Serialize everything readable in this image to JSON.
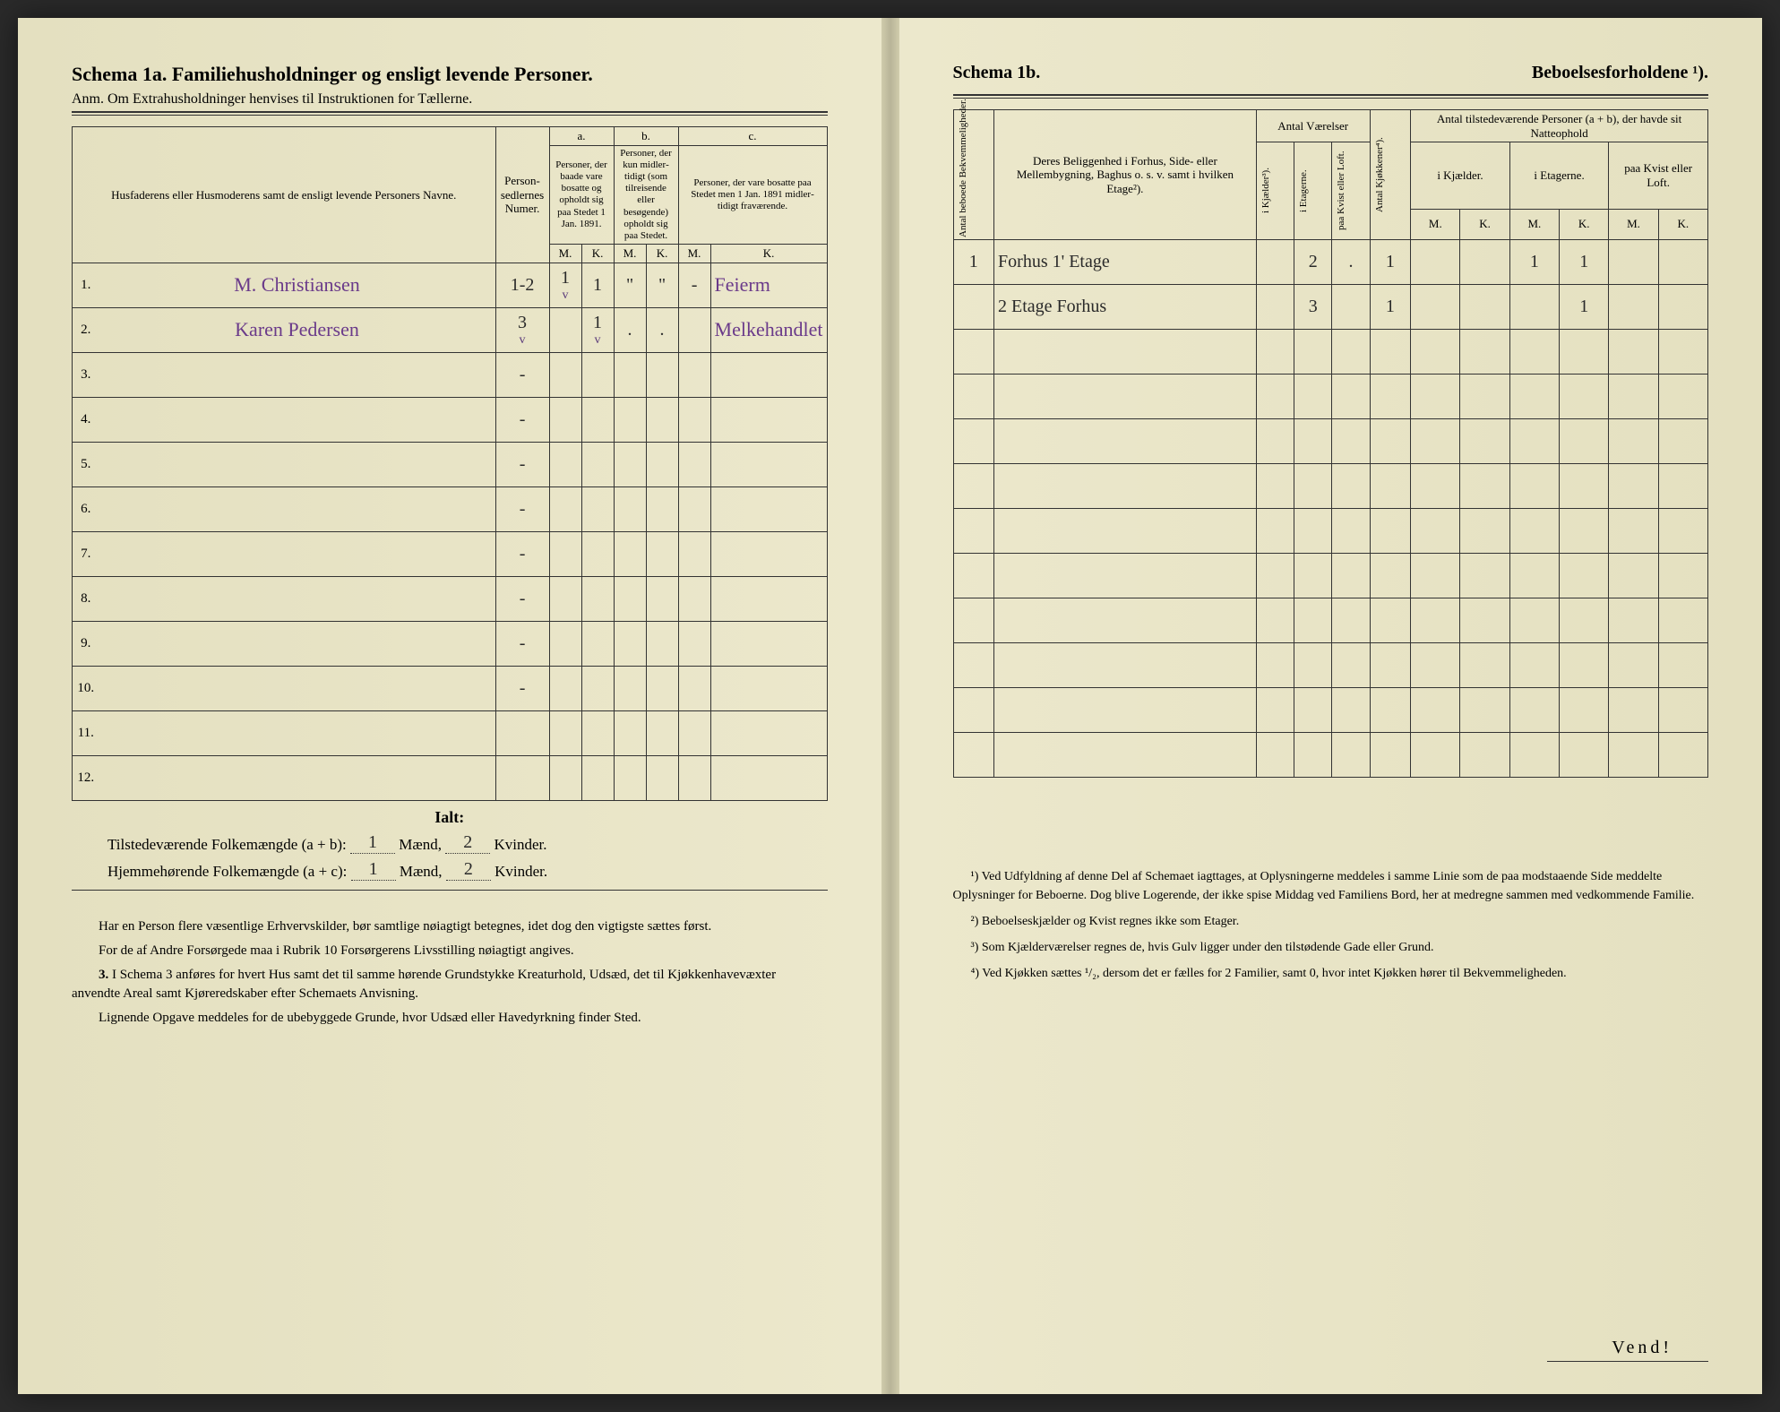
{
  "left": {
    "title": "Schema 1a.  Familiehusholdninger og ensligt levende Personer.",
    "subtitle": "Anm. Om Extrahusholdninger henvises til Instruktionen for Tællerne.",
    "head_name": "Husfaderens eller Husmode­rens samt de ensligt levende Personers Navne.",
    "head_person_nummer": "Person­sedler­nes Numer.",
    "col_a": "a.",
    "col_a_text": "Personer, der baade vare bo­satte og opholdt sig paa Stedet 1 Jan. 1891.",
    "col_b": "b.",
    "col_b_text": "Personer, der kun midler­tidigt (som tilreisende eller besøgende) opholdt sig paa Stedet.",
    "col_c": "c.",
    "col_c_text": "Personer, der vare bosatte paa Stedet men 1 Jan. 1891 midler­tidigt fra­værende.",
    "mk_m": "M.",
    "mk_k": "K.",
    "rows": [
      {
        "num": "1.",
        "name_hand": "M. Christiansen",
        "nummer": "1-2",
        "aM": "1",
        "aK": "1",
        "bM": "\"",
        "bK": "\"",
        "cM": "-",
        "cK": "Feierm",
        "aM_check": "v",
        "aK_check": ""
      },
      {
        "num": "2.",
        "name_hand": "Karen Pedersen",
        "nummer": "3",
        "aM": "",
        "aK": "1",
        "bM": ".",
        "bK": ".",
        "cM": "",
        "cK": "Melkehandlet",
        "nummer_check": "v",
        "aK_check": "v"
      },
      {
        "num": "3.",
        "name_hand": "",
        "nummer": "-",
        "aM": "",
        "aK": "",
        "bM": "",
        "bK": "",
        "cM": "",
        "cK": ""
      },
      {
        "num": "4.",
        "name_hand": "",
        "nummer": "-",
        "aM": "",
        "aK": "",
        "bM": "",
        "bK": "",
        "cM": "",
        "cK": ""
      },
      {
        "num": "5.",
        "name_hand": "",
        "nummer": "-",
        "aM": "",
        "aK": "",
        "bM": "",
        "bK": "",
        "cM": "",
        "cK": ""
      },
      {
        "num": "6.",
        "name_hand": "",
        "nummer": "-",
        "aM": "",
        "aK": "",
        "bM": "",
        "bK": "",
        "cM": "",
        "cK": ""
      },
      {
        "num": "7.",
        "name_hand": "",
        "nummer": "-",
        "aM": "",
        "aK": "",
        "bM": "",
        "bK": "",
        "cM": "",
        "cK": ""
      },
      {
        "num": "8.",
        "name_hand": "",
        "nummer": "-",
        "aM": "",
        "aK": "",
        "bM": "",
        "bK": "",
        "cM": "",
        "cK": ""
      },
      {
        "num": "9.",
        "name_hand": "",
        "nummer": "-",
        "aM": "",
        "aK": "",
        "bM": "",
        "bK": "",
        "cM": "",
        "cK": ""
      },
      {
        "num": "10.",
        "name_hand": "",
        "nummer": "-",
        "aM": "",
        "aK": "",
        "bM": "",
        "bK": "",
        "cM": "",
        "cK": ""
      },
      {
        "num": "11.",
        "name_hand": "",
        "nummer": "",
        "aM": "",
        "aK": "",
        "bM": "",
        "bK": "",
        "cM": "",
        "cK": ""
      },
      {
        "num": "12.",
        "name_hand": "",
        "nummer": "",
        "aM": "",
        "aK": "",
        "bM": "",
        "bK": "",
        "cM": "",
        "cK": ""
      }
    ],
    "ialt": "Ialt:",
    "sum1_label1": "Tilstedeværende Folkemængde (a + b):",
    "sum1_m": "1",
    "sum1_mlabel": "Mænd,",
    "sum1_k": "2",
    "sum1_klabel": "Kvinder.",
    "sum2_label1": "Hjemmehørende Folkemængde (a + c):",
    "sum2_m": "1",
    "sum2_mlabel": "Mænd,",
    "sum2_k": "2",
    "sum2_klabel": "Kvinder.",
    "foot1": "Har en Person flere væsentlige Erhvervskilder, bør samtlige nøiagtigt betegnes, idet dog den vigtigste sættes først.",
    "foot2": "For de af Andre Forsørgede maa i Rubrik 10 Forsørgerens Livsstilling nøiagtigt angives.",
    "foot3_num": "3.",
    "foot3": "I Schema 3 anføres for hvert Hus samt det til samme hørende Grund­stykke Kreaturhold, Udsæd, det til Kjøkkenhavevæxter anvendte Areal samt Kjøreredskaber efter Schemaets Anvisning.",
    "foot4": "Lignende Opgave meddeles for de ubebyggede Grunde, hvor Udsæd eller Havedyrkning finder Sted."
  },
  "right": {
    "title_a": "Schema 1b.",
    "title_b": "Beboelsesforholdene ¹).",
    "head_antal_bekv": "Antal beboede Bekvemmeligheder.",
    "head_belig": "Deres Beliggenhed i Forhus, Side- eller Mellembygning, Baghus o. s. v. samt i hvilken Etage²).",
    "head_antvar": "Antal Værelser",
    "head_kjokk": "Antal Kjøkkener⁴).",
    "head_vaer_kjael": "i Kjælder³).",
    "head_vaer_etag": "i Etagerne.",
    "head_vaer_kvist": "paa Kvist eller Loft.",
    "head_tilst": "Antal tilstedeværende Personer (a + b), der havde sit Natteophold",
    "head_natte_kjael": "i Kjæl­der.",
    "head_natte_etag": "i Etagerne.",
    "head_natte_kvist": "paa Kvist eller Loft.",
    "mk_m": "M.",
    "mk_k": "K.",
    "rows": [
      {
        "bekv": "1",
        "belig": "Forhus 1' Etage",
        "kjael": "",
        "etag": "2",
        "kvist": ".",
        "kjokk": "1",
        "nkM": "",
        "nkK": "",
        "neM": "1",
        "neK": "1",
        "nkvM": "",
        "nkvK": ""
      },
      {
        "bekv": "",
        "belig": "2 Etage Forhus",
        "kjael": "",
        "etag": "3",
        "kvist": "",
        "kjokk": "1",
        "nkM": "",
        "nkK": "",
        "neM": "",
        "neK": "1",
        "nkvM": "",
        "nkvK": ""
      },
      {
        "bekv": "",
        "belig": "",
        "kjael": "",
        "etag": "",
        "kvist": "",
        "kjokk": "",
        "nkM": "",
        "nkK": "",
        "neM": "",
        "neK": "",
        "nkvM": "",
        "nkvK": ""
      },
      {
        "bekv": "",
        "belig": "",
        "kjael": "",
        "etag": "",
        "kvist": "",
        "kjokk": "",
        "nkM": "",
        "nkK": "",
        "neM": "",
        "neK": "",
        "nkvM": "",
        "nkvK": ""
      },
      {
        "bekv": "",
        "belig": "",
        "kjael": "",
        "etag": "",
        "kvist": "",
        "kjokk": "",
        "nkM": "",
        "nkK": "",
        "neM": "",
        "neK": "",
        "nkvM": "",
        "nkvK": ""
      },
      {
        "bekv": "",
        "belig": "",
        "kjael": "",
        "etag": "",
        "kvist": "",
        "kjokk": "",
        "nkM": "",
        "nkK": "",
        "neM": "",
        "neK": "",
        "nkvM": "",
        "nkvK": ""
      },
      {
        "bekv": "",
        "belig": "",
        "kjael": "",
        "etag": "",
        "kvist": "",
        "kjokk": "",
        "nkM": "",
        "nkK": "",
        "neM": "",
        "neK": "",
        "nkvM": "",
        "nkvK": ""
      },
      {
        "bekv": "",
        "belig": "",
        "kjael": "",
        "etag": "",
        "kvist": "",
        "kjokk": "",
        "nkM": "",
        "nkK": "",
        "neM": "",
        "neK": "",
        "nkvM": "",
        "nkvK": ""
      },
      {
        "bekv": "",
        "belig": "",
        "kjael": "",
        "etag": "",
        "kvist": "",
        "kjokk": "",
        "nkM": "",
        "nkK": "",
        "neM": "",
        "neK": "",
        "nkvM": "",
        "nkvK": ""
      },
      {
        "bekv": "",
        "belig": "",
        "kjael": "",
        "etag": "",
        "kvist": "",
        "kjokk": "",
        "nkM": "",
        "nkK": "",
        "neM": "",
        "neK": "",
        "nkvM": "",
        "nkvK": ""
      },
      {
        "bekv": "",
        "belig": "",
        "kjael": "",
        "etag": "",
        "kvist": "",
        "kjokk": "",
        "nkM": "",
        "nkK": "",
        "neM": "",
        "neK": "",
        "nkvM": "",
        "nkvK": ""
      },
      {
        "bekv": "",
        "belig": "",
        "kjael": "",
        "etag": "",
        "kvist": "",
        "kjokk": "",
        "nkM": "",
        "nkK": "",
        "neM": "",
        "neK": "",
        "nkvM": "",
        "nkvK": ""
      }
    ],
    "note1": "¹) Ved Udfyldning af denne Del af Schemaet iagttages, at Oplysningerne meddeles i samme Linie som de paa modstaaende Side meddelte Oplysninger for Beboerne. Dog blive Logerende, der ikke spise Middag ved Familiens Bord, her at medregne sammen med vedkommende Familie.",
    "note2": "²) Beboelseskjælder og Kvist regnes ikke som Etager.",
    "note3": "³) Som Kjælderværelser regnes de, hvis Gulv ligger under den tilstødende Gade eller Grund.",
    "note4": "⁴) Ved Kjøkken sættes ¹/₂, dersom det er fælles for 2 Familier, samt 0, hvor intet Kjøkken hører til Bekvemmeligheden.",
    "vend": "Vend!"
  }
}
